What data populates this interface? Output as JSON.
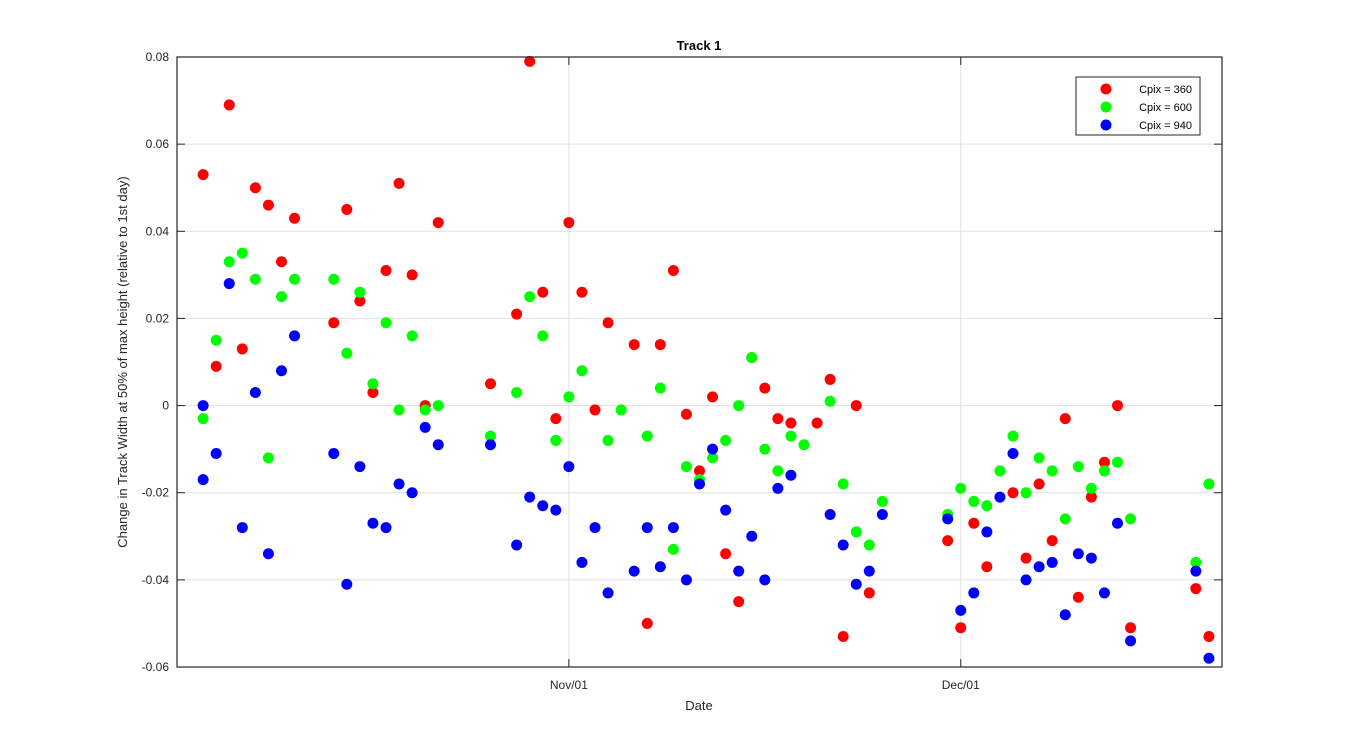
{
  "chart_data": {
    "type": "scatter",
    "title": "Track 1",
    "xlabel": "Date",
    "ylabel": "Change in Track Width at 50% of max height (relative to 1st day)",
    "ylim": [
      -0.06,
      0.08
    ],
    "xlim": [
      "2001-10-02",
      "2001-12-21"
    ],
    "x_ticks": [
      {
        "date": "2001-11-01",
        "label": "Nov/01"
      },
      {
        "date": "2001-12-01",
        "label": "Dec/01"
      }
    ],
    "y_ticks": [
      "-0.06",
      "-0.04",
      "-0.02",
      "0",
      "0.02",
      "0.04",
      "0.06",
      "0.08"
    ],
    "grid": true,
    "legend_position": "top-right",
    "series": [
      {
        "name": "Cpix = 360",
        "color": "#ff0000",
        "points": [
          [
            "2001-10-04",
            0.053
          ],
          [
            "2001-10-05",
            0.009
          ],
          [
            "2001-10-06",
            0.069
          ],
          [
            "2001-10-07",
            0.013
          ],
          [
            "2001-10-08",
            0.05
          ],
          [
            "2001-10-09",
            0.046
          ],
          [
            "2001-10-10",
            0.033
          ],
          [
            "2001-10-11",
            0.043
          ],
          [
            "2001-10-14",
            0.019
          ],
          [
            "2001-10-15",
            0.045
          ],
          [
            "2001-10-16",
            0.024
          ],
          [
            "2001-10-17",
            0.003
          ],
          [
            "2001-10-18",
            0.031
          ],
          [
            "2001-10-19",
            0.051
          ],
          [
            "2001-10-20",
            0.03
          ],
          [
            "2001-10-21",
            0.0
          ],
          [
            "2001-10-22",
            0.042
          ],
          [
            "2001-10-26",
            0.005
          ],
          [
            "2001-10-28",
            0.021
          ],
          [
            "2001-10-29",
            0.079
          ],
          [
            "2001-10-30",
            0.026
          ],
          [
            "2001-10-31",
            -0.003
          ],
          [
            "2001-11-01",
            0.042
          ],
          [
            "2001-11-02",
            0.026
          ],
          [
            "2001-11-03",
            -0.001
          ],
          [
            "2001-11-04",
            0.019
          ],
          [
            "2001-11-06",
            0.014
          ],
          [
            "2001-11-07",
            -0.05
          ],
          [
            "2001-11-08",
            0.014
          ],
          [
            "2001-11-09",
            0.031
          ],
          [
            "2001-11-10",
            -0.002
          ],
          [
            "2001-11-11",
            -0.015
          ],
          [
            "2001-11-12",
            0.002
          ],
          [
            "2001-11-13",
            -0.034
          ],
          [
            "2001-11-14",
            -0.045
          ],
          [
            "2001-11-15",
            0.011
          ],
          [
            "2001-11-16",
            0.004
          ],
          [
            "2001-11-17",
            -0.003
          ],
          [
            "2001-11-18",
            -0.004
          ],
          [
            "2001-11-20",
            -0.004
          ],
          [
            "2001-11-21",
            0.006
          ],
          [
            "2001-11-22",
            -0.053
          ],
          [
            "2001-11-23",
            0.0
          ],
          [
            "2001-11-24",
            -0.043
          ],
          [
            "2001-11-30",
            -0.031
          ],
          [
            "2001-12-01",
            -0.051
          ],
          [
            "2001-12-02",
            -0.027
          ],
          [
            "2001-12-03",
            -0.037
          ],
          [
            "2001-12-05",
            -0.02
          ],
          [
            "2001-12-06",
            -0.035
          ],
          [
            "2001-12-07",
            -0.018
          ],
          [
            "2001-12-08",
            -0.031
          ],
          [
            "2001-12-09",
            -0.003
          ],
          [
            "2001-12-10",
            -0.044
          ],
          [
            "2001-12-11",
            -0.021
          ],
          [
            "2001-12-12",
            -0.013
          ],
          [
            "2001-12-13",
            0.0
          ],
          [
            "2001-12-14",
            -0.051
          ],
          [
            "2001-12-19",
            -0.042
          ],
          [
            "2001-12-20",
            -0.053
          ]
        ]
      },
      {
        "name": "Cpix = 600",
        "color": "#00ff00",
        "points": [
          [
            "2001-10-04",
            -0.003
          ],
          [
            "2001-10-05",
            0.015
          ],
          [
            "2001-10-06",
            0.033
          ],
          [
            "2001-10-07",
            0.035
          ],
          [
            "2001-10-08",
            0.029
          ],
          [
            "2001-10-09",
            -0.012
          ],
          [
            "2001-10-10",
            0.025
          ],
          [
            "2001-10-11",
            0.029
          ],
          [
            "2001-10-14",
            0.029
          ],
          [
            "2001-10-15",
            0.012
          ],
          [
            "2001-10-16",
            0.026
          ],
          [
            "2001-10-17",
            0.005
          ],
          [
            "2001-10-18",
            0.019
          ],
          [
            "2001-10-19",
            -0.001
          ],
          [
            "2001-10-20",
            0.016
          ],
          [
            "2001-10-21",
            -0.001
          ],
          [
            "2001-10-22",
            0.0
          ],
          [
            "2001-10-26",
            -0.007
          ],
          [
            "2001-10-28",
            0.003
          ],
          [
            "2001-10-29",
            0.025
          ],
          [
            "2001-10-30",
            0.016
          ],
          [
            "2001-10-31",
            -0.008
          ],
          [
            "2001-11-01",
            0.002
          ],
          [
            "2001-11-02",
            0.008
          ],
          [
            "2001-11-04",
            -0.008
          ],
          [
            "2001-11-05",
            -0.001
          ],
          [
            "2001-11-07",
            -0.007
          ],
          [
            "2001-11-08",
            0.004
          ],
          [
            "2001-11-09",
            -0.033
          ],
          [
            "2001-11-10",
            -0.014
          ],
          [
            "2001-11-11",
            -0.017
          ],
          [
            "2001-11-12",
            -0.012
          ],
          [
            "2001-11-13",
            -0.008
          ],
          [
            "2001-11-14",
            0.0
          ],
          [
            "2001-11-15",
            0.011
          ],
          [
            "2001-11-16",
            -0.01
          ],
          [
            "2001-11-17",
            -0.015
          ],
          [
            "2001-11-18",
            -0.007
          ],
          [
            "2001-11-19",
            -0.009
          ],
          [
            "2001-11-21",
            0.001
          ],
          [
            "2001-11-22",
            -0.018
          ],
          [
            "2001-11-23",
            -0.029
          ],
          [
            "2001-11-24",
            -0.032
          ],
          [
            "2001-11-25",
            -0.022
          ],
          [
            "2001-11-30",
            -0.025
          ],
          [
            "2001-12-01",
            -0.019
          ],
          [
            "2001-12-02",
            -0.022
          ],
          [
            "2001-12-03",
            -0.023
          ],
          [
            "2001-12-04",
            -0.015
          ],
          [
            "2001-12-05",
            -0.007
          ],
          [
            "2001-12-06",
            -0.02
          ],
          [
            "2001-12-07",
            -0.012
          ],
          [
            "2001-12-08",
            -0.015
          ],
          [
            "2001-12-09",
            -0.026
          ],
          [
            "2001-12-10",
            -0.014
          ],
          [
            "2001-12-11",
            -0.019
          ],
          [
            "2001-12-12",
            -0.015
          ],
          [
            "2001-12-13",
            -0.013
          ],
          [
            "2001-12-14",
            -0.026
          ],
          [
            "2001-12-19",
            -0.036
          ],
          [
            "2001-12-20",
            -0.018
          ]
        ]
      },
      {
        "name": "Cpix = 940",
        "color": "#0000ff",
        "points": [
          [
            "2001-10-04",
            0.0
          ],
          [
            "2001-10-04",
            -0.017
          ],
          [
            "2001-10-05",
            -0.011
          ],
          [
            "2001-10-06",
            0.028
          ],
          [
            "2001-10-07",
            -0.028
          ],
          [
            "2001-10-08",
            0.003
          ],
          [
            "2001-10-09",
            -0.034
          ],
          [
            "2001-10-10",
            0.008
          ],
          [
            "2001-10-11",
            0.016
          ],
          [
            "2001-10-14",
            -0.011
          ],
          [
            "2001-10-15",
            -0.041
          ],
          [
            "2001-10-16",
            -0.014
          ],
          [
            "2001-10-17",
            -0.027
          ],
          [
            "2001-10-18",
            -0.028
          ],
          [
            "2001-10-19",
            -0.018
          ],
          [
            "2001-10-20",
            -0.02
          ],
          [
            "2001-10-21",
            -0.005
          ],
          [
            "2001-10-22",
            -0.009
          ],
          [
            "2001-10-26",
            -0.009
          ],
          [
            "2001-10-28",
            -0.032
          ],
          [
            "2001-10-29",
            -0.021
          ],
          [
            "2001-10-30",
            -0.023
          ],
          [
            "2001-10-31",
            -0.024
          ],
          [
            "2001-11-01",
            -0.014
          ],
          [
            "2001-11-02",
            -0.036
          ],
          [
            "2001-11-03",
            -0.028
          ],
          [
            "2001-11-04",
            -0.043
          ],
          [
            "2001-11-06",
            -0.038
          ],
          [
            "2001-11-07",
            -0.028
          ],
          [
            "2001-11-08",
            -0.037
          ],
          [
            "2001-11-09",
            -0.028
          ],
          [
            "2001-11-10",
            -0.04
          ],
          [
            "2001-11-11",
            -0.018
          ],
          [
            "2001-11-12",
            -0.01
          ],
          [
            "2001-11-13",
            -0.024
          ],
          [
            "2001-11-14",
            -0.038
          ],
          [
            "2001-11-15",
            -0.03
          ],
          [
            "2001-11-16",
            -0.04
          ],
          [
            "2001-11-17",
            -0.019
          ],
          [
            "2001-11-18",
            -0.016
          ],
          [
            "2001-11-21",
            -0.025
          ],
          [
            "2001-11-22",
            -0.032
          ],
          [
            "2001-11-23",
            -0.041
          ],
          [
            "2001-11-24",
            -0.038
          ],
          [
            "2001-11-25",
            -0.025
          ],
          [
            "2001-11-30",
            -0.026
          ],
          [
            "2001-12-01",
            -0.047
          ],
          [
            "2001-12-02",
            -0.043
          ],
          [
            "2001-12-03",
            -0.029
          ],
          [
            "2001-12-04",
            -0.021
          ],
          [
            "2001-12-05",
            -0.011
          ],
          [
            "2001-12-06",
            -0.04
          ],
          [
            "2001-12-07",
            -0.037
          ],
          [
            "2001-12-08",
            -0.036
          ],
          [
            "2001-12-09",
            -0.048
          ],
          [
            "2001-12-10",
            -0.034
          ],
          [
            "2001-12-11",
            -0.035
          ],
          [
            "2001-12-12",
            -0.043
          ],
          [
            "2001-12-13",
            -0.027
          ],
          [
            "2001-12-14",
            -0.054
          ],
          [
            "2001-12-19",
            -0.038
          ],
          [
            "2001-12-20",
            -0.058
          ]
        ]
      }
    ]
  }
}
